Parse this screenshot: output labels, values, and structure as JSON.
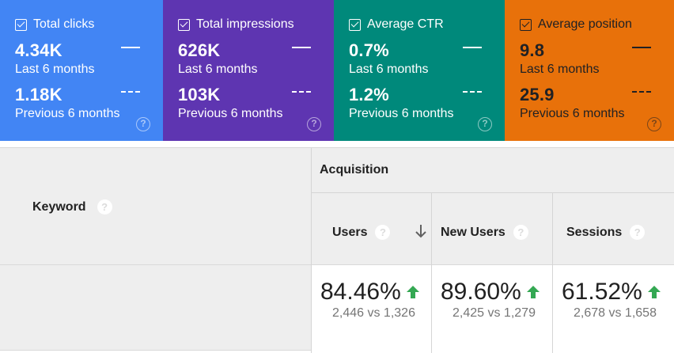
{
  "metrics": [
    {
      "title": "Total clicks",
      "current_value": "4.34K",
      "current_period": "Last 6 months",
      "previous_value": "1.18K",
      "previous_period": "Previous 6 months",
      "color": "#4285f4"
    },
    {
      "title": "Total impressions",
      "current_value": "626K",
      "current_period": "Last 6 months",
      "previous_value": "103K",
      "previous_period": "Previous 6 months",
      "color": "#5e35b1"
    },
    {
      "title": "Average CTR",
      "current_value": "0.7%",
      "current_period": "Last 6 months",
      "previous_value": "1.2%",
      "previous_period": "Previous 6 months",
      "color": "#00897b"
    },
    {
      "title": "Average position",
      "current_value": "9.8",
      "current_period": "Last 6 months",
      "previous_value": "25.9",
      "previous_period": "Previous 6 months",
      "color": "#e8710a"
    }
  ],
  "table": {
    "keyword_header": "Keyword",
    "group_header": "Acquisition",
    "columns": [
      {
        "label": "Users",
        "sorted": "descending"
      },
      {
        "label": "New Users"
      },
      {
        "label": "Sessions"
      }
    ],
    "row": [
      {
        "percent": "84.46%",
        "comparison": "2,446 vs 1,326",
        "trend": "up"
      },
      {
        "percent": "89.60%",
        "comparison": "2,425 vs 1,279",
        "trend": "up"
      },
      {
        "percent": "61.52%",
        "comparison": "2,678 vs 1,658",
        "trend": "up"
      }
    ],
    "help_symbol": "?"
  },
  "colors": {
    "positive": "#34a853",
    "header_bg": "#eeeeee"
  }
}
